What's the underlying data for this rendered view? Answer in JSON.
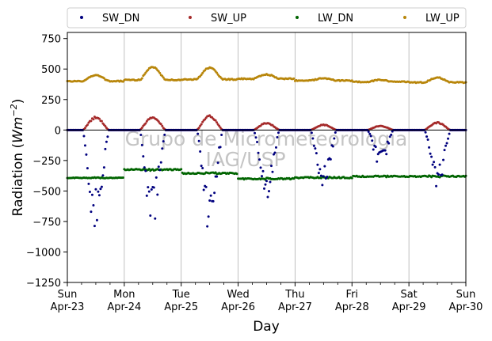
{
  "chart_data": {
    "type": "scatter",
    "title": "",
    "xlabel": "Day",
    "ylabel_prefix": "Radiation (",
    "ylabel_unit": "Wm",
    "ylabel_exp": "−2",
    "ylabel_suffix": ")",
    "watermark_line1": "Grupo de Micrometeorologia",
    "watermark_line2": "IAG/USP",
    "ylim": [
      -1250,
      800
    ],
    "yticks": [
      750,
      500,
      250,
      0,
      -250,
      -500,
      -750,
      -1000,
      -1250
    ],
    "ytick_labels": [
      "750",
      "500",
      "250",
      "0",
      "−250",
      "−500",
      "−750",
      "−1000",
      "−1250"
    ],
    "xlim_days": [
      0,
      7
    ],
    "xticks": [
      {
        "day": 0,
        "line1": "Sun",
        "line2": "Apr-23"
      },
      {
        "day": 1,
        "line1": "Mon",
        "line2": "Apr-24"
      },
      {
        "day": 2,
        "line1": "Tue",
        "line2": "Apr-25"
      },
      {
        "day": 3,
        "line1": "Wed",
        "line2": "Apr-26"
      },
      {
        "day": 4,
        "line1": "Thu",
        "line2": "Apr-27"
      },
      {
        "day": 5,
        "line1": "Fri",
        "line2": "Apr-28"
      },
      {
        "day": 6,
        "line1": "Sat",
        "line2": "Apr-29"
      },
      {
        "day": 7,
        "line1": "Sun",
        "line2": "Apr-30"
      }
    ],
    "grid": "vertical at day ticks",
    "zero_line": true,
    "legend_position": "top, outside plot, 4 columns",
    "series": [
      {
        "name": "SW_DN",
        "color": "#00007f",
        "peaks": [
          -880,
          -800,
          -850,
          -600,
          -480,
          -300,
          -490
        ]
      },
      {
        "name": "SW_UP",
        "color": "#a52a2a",
        "peaks": [
          110,
          115,
          120,
          60,
          45,
          35,
          65
        ]
      },
      {
        "name": "LW_DN",
        "color": "#006400",
        "daily_min": [
          -395,
          -330,
          -360,
          -405,
          -395,
          -385,
          -385
        ],
        "daily_max": [
          -390,
          -320,
          -350,
          -395,
          -385,
          -375,
          -375
        ]
      },
      {
        "name": "LW_UP",
        "color": "#b8860b",
        "night_level": [
          400,
          410,
          415,
          420,
          405,
          395,
          390
        ],
        "peaks": [
          450,
          515,
          510,
          455,
          425,
          410,
          430
        ]
      }
    ]
  }
}
